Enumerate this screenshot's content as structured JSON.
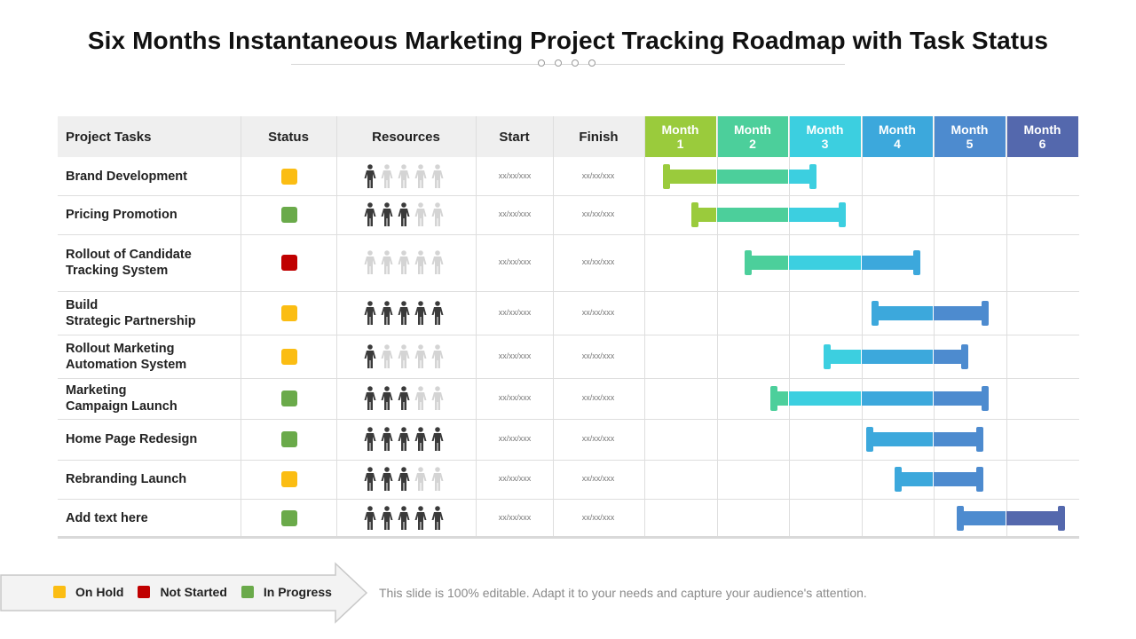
{
  "title": "Six Months Instantaneous Marketing Project Tracking Roadmap with Task Status",
  "columns": {
    "tasks": "Project Tasks",
    "status": "Status",
    "resources": "Resources",
    "start": "Start",
    "finish": "Finish"
  },
  "months": [
    {
      "word": "Month",
      "num": "1",
      "color": "#9acb3c"
    },
    {
      "word": "Month",
      "num": "2",
      "color": "#4ccf9b"
    },
    {
      "word": "Month",
      "num": "3",
      "color": "#3ccfe0"
    },
    {
      "word": "Month",
      "num": "4",
      "color": "#3ca8dc"
    },
    {
      "word": "Month",
      "num": "5",
      "color": "#4d8bcf"
    },
    {
      "word": "Month",
      "num": "6",
      "color": "#5468ad"
    }
  ],
  "status_colors": {
    "on_hold": "#fbbd13",
    "not_started": "#c00000",
    "in_progress": "#6aaa4a"
  },
  "rows": [
    {
      "task": "Brand Development",
      "status": "on_hold",
      "resources": 1,
      "start": "xx/xx/xxx",
      "finish": "xx/xx/xxx",
      "bar": {
        "start": 0.31,
        "end": 2.33,
        "start_color": "#9acb3c",
        "end_color": "#3ccfe0"
      }
    },
    {
      "task": "Pricing Promotion",
      "status": "in_progress",
      "resources": 3,
      "start": "xx/xx/xxx",
      "finish": "xx/xx/xxx",
      "bar": {
        "start": 0.69,
        "end": 2.73,
        "start_color": "#9acb3c",
        "end_color": "#3ccfe0"
      }
    },
    {
      "task": "Rollout of Candidate\nTracking System",
      "status": "not_started",
      "resources": 0,
      "start": "xx/xx/xxx",
      "finish": "xx/xx/xxx",
      "bar": {
        "start": 1.43,
        "end": 3.76,
        "start_color": "#4ccf9b",
        "end_color": "#3ca8dc"
      }
    },
    {
      "task": "Build\nStrategic Partnership",
      "status": "on_hold",
      "resources": 5,
      "start": "xx/xx/xxx",
      "finish": "xx/xx/xxx",
      "bar": {
        "start": 3.19,
        "end": 4.71,
        "start_color": "#3ca8dc",
        "end_color": "#4d8bcf"
      }
    },
    {
      "task": "Rollout Marketing\nAutomation  System",
      "status": "on_hold",
      "resources": 1,
      "start": "xx/xx/xxx",
      "finish": "xx/xx/xxx",
      "bar": {
        "start": 2.52,
        "end": 4.43,
        "start_color": "#3ccfe0",
        "end_color": "#4d8bcf"
      }
    },
    {
      "task": "Marketing\nCampaign Launch",
      "status": "in_progress",
      "resources": 3,
      "start": "xx/xx/xxx",
      "finish": "xx/xx/xxx",
      "bar": {
        "start": 1.79,
        "end": 4.71,
        "start_color": "#4ccf9b",
        "end_color": "#4d8bcf"
      }
    },
    {
      "task": "Home Page Redesign",
      "status": "in_progress",
      "resources": 5,
      "start": "xx/xx/xxx",
      "finish": "xx/xx/xxx",
      "bar": {
        "start": 3.11,
        "end": 4.64,
        "start_color": "#3ca8dc",
        "end_color": "#4d8bcf"
      }
    },
    {
      "task": "Rebranding Launch",
      "status": "on_hold",
      "resources": 3,
      "start": "xx/xx/xxx",
      "finish": "xx/xx/xxx",
      "bar": {
        "start": 3.51,
        "end": 4.64,
        "start_color": "#3ca8dc",
        "end_color": "#4d8bcf"
      }
    },
    {
      "task": "Add  text here",
      "status": "in_progress",
      "resources": 5,
      "start": "xx/xx/xxx",
      "finish": "xx/xx/xxx",
      "bar": {
        "start": 4.37,
        "end": 5.76,
        "start_color": "#4d8bcf",
        "end_color": "#5468ad"
      }
    }
  ],
  "legend": [
    {
      "key": "on_hold",
      "label": "On Hold"
    },
    {
      "key": "not_started",
      "label": "Not Started"
    },
    {
      "key": "in_progress",
      "label": "In Progress"
    }
  ],
  "footer_note": "This slide is 100% editable. Adapt it to your needs and capture your audience's attention."
}
